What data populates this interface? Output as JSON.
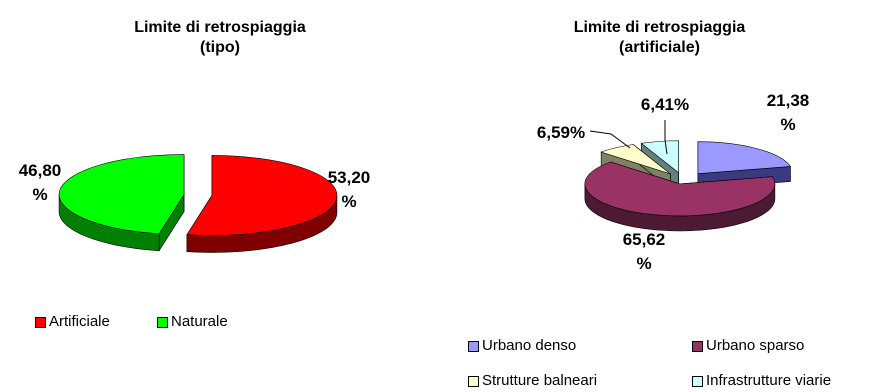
{
  "chart_data": [
    {
      "type": "pie",
      "title": "Limite di retrospiaggia\n(tipo)",
      "categories": [
        "Artificiale",
        "Naturale"
      ],
      "values": [
        53.2,
        46.8
      ],
      "data_labels": [
        "53,20\n%",
        "46,80\n%"
      ],
      "colors": [
        "#ff0000",
        "#00ff00"
      ],
      "dark_colors": [
        "#800000",
        "#008000"
      ],
      "legend": "bottom-left",
      "legend_labels": [
        "Artificiale",
        "Naturale"
      ]
    },
    {
      "type": "pie",
      "title": "Limite di retrospiaggia\n(artificiale)",
      "categories": [
        "Urbano denso",
        "Urbano sparso",
        "Strutture balneari",
        "Infrastrutture viarie"
      ],
      "values": [
        21.38,
        65.62,
        6.59,
        6.41
      ],
      "data_labels": [
        "21,38\n%",
        "65,62\n%",
        "6,59%",
        "6,41%"
      ],
      "colors": [
        "#9999ff",
        "#993366",
        "#ffffcc",
        "#ccffff"
      ],
      "dark_colors": [
        "#3a3a80",
        "#4d1a33",
        "#808066",
        "#668080"
      ],
      "legend": "bottom",
      "legend_labels": [
        "Urbano denso",
        "Urbano sparso",
        "Strutture balneari",
        "Infrastrutture viarie"
      ]
    }
  ]
}
